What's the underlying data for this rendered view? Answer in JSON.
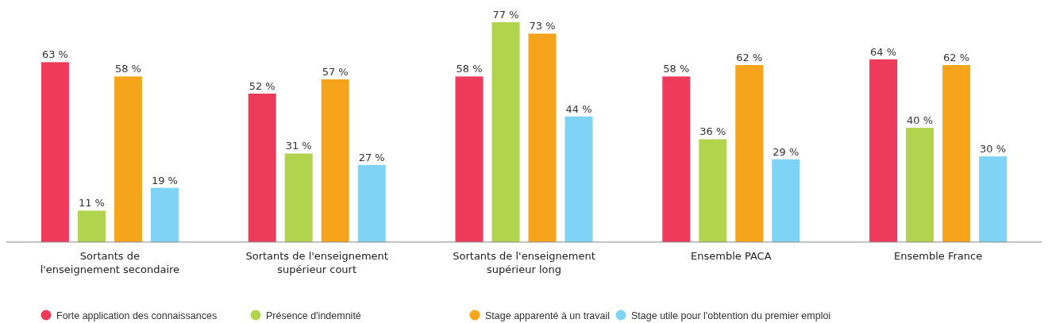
{
  "chart_data": {
    "type": "bar",
    "categories": [
      "Sortants de\nl'enseignement secondaire",
      "Sortants de l'enseignement\nsupérieur court",
      "Sortants de l'enseignement\nsupérieur long",
      "Ensemble PACA",
      "Ensemble France"
    ],
    "series": [
      {
        "name": "Forte application des connaissances",
        "color": "#ee3b5b",
        "values": [
          63,
          52,
          58,
          58,
          64
        ],
        "value_labels": [
          "63 %",
          "52 %",
          "58 %",
          "58 %",
          "64 %"
        ]
      },
      {
        "name": "Présence d'indemnité",
        "color": "#b2d34e",
        "values": [
          11,
          31,
          77,
          36,
          40
        ],
        "value_labels": [
          "11 %",
          "31 %",
          "77 %",
          "36 %",
          "40 %"
        ]
      },
      {
        "name": "Stage apparenté à un travail",
        "color": "#f7a41d",
        "values": [
          58,
          57,
          73,
          62,
          62
        ],
        "value_labels": [
          "58 %",
          "57 %",
          "73 %",
          "62 %",
          "62 %"
        ]
      },
      {
        "name": "Stage utile pour l'obtention du premier emploi",
        "color": "#7fd3f4",
        "values": [
          19,
          27,
          44,
          29,
          30
        ],
        "value_labels": [
          "19 %",
          "27 %",
          "44 %",
          "29 %",
          "30 %"
        ]
      }
    ],
    "legend": "bottom"
  }
}
